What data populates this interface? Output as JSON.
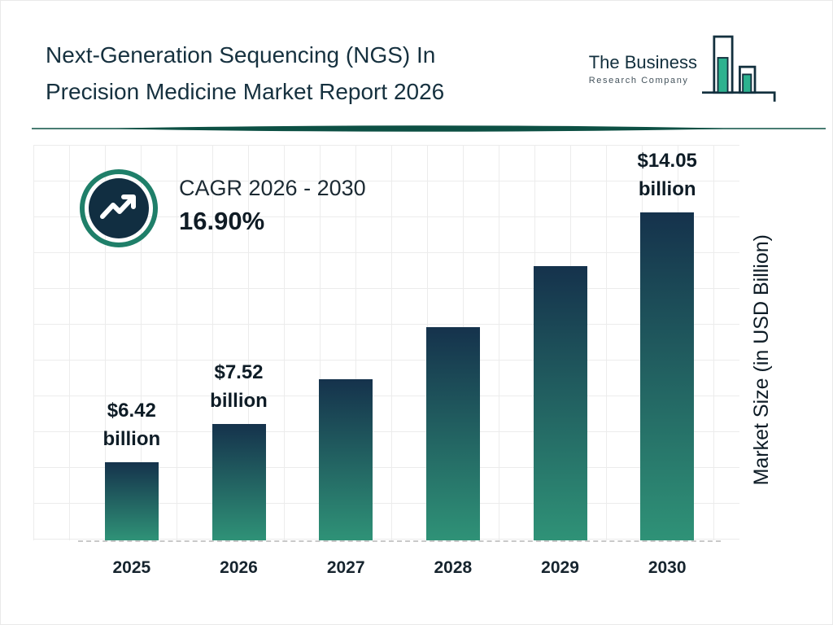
{
  "header": {
    "title_line1": "Next-Generation Sequencing (NGS) In",
    "title_line2": "Precision Medicine Market Report 2026",
    "logo": {
      "line1": "The Business",
      "line2": "Research Company",
      "icon": "bar-chart-icon"
    }
  },
  "cagr": {
    "label": "CAGR 2026 - 2030",
    "value": "16.90%",
    "icon": "trending-up-icon"
  },
  "chart_data": {
    "type": "bar",
    "title": "Next-Generation Sequencing (NGS) In Precision Medicine Market Report 2026",
    "categories": [
      "2025",
      "2026",
      "2027",
      "2028",
      "2029",
      "2030"
    ],
    "values": [
      6.42,
      7.52,
      8.79,
      10.28,
      12.02,
      14.05
    ],
    "value_labels": [
      {
        "category": "2025",
        "line1": "$6.42",
        "line2": "billion"
      },
      {
        "category": "2026",
        "line1": "$7.52",
        "line2": "billion"
      },
      {
        "category": "2030",
        "line1": "$14.05",
        "line2": "billion"
      }
    ],
    "xlabel": "",
    "ylabel": "Market Size (in USD Billion)",
    "unit": "USD Billion",
    "ylim": [
      4.2,
      15.4
    ],
    "grid": true,
    "legend": "none",
    "colors": {
      "bar_gradient_top": "#15324c",
      "bar_gradient_bottom": "#2f9277",
      "accent_navy": "#13303e",
      "accent_teal": "#2db28f",
      "divider": "#0d5044",
      "grid_line": "#ececec",
      "baseline_dash": "#c9c9c9"
    }
  }
}
